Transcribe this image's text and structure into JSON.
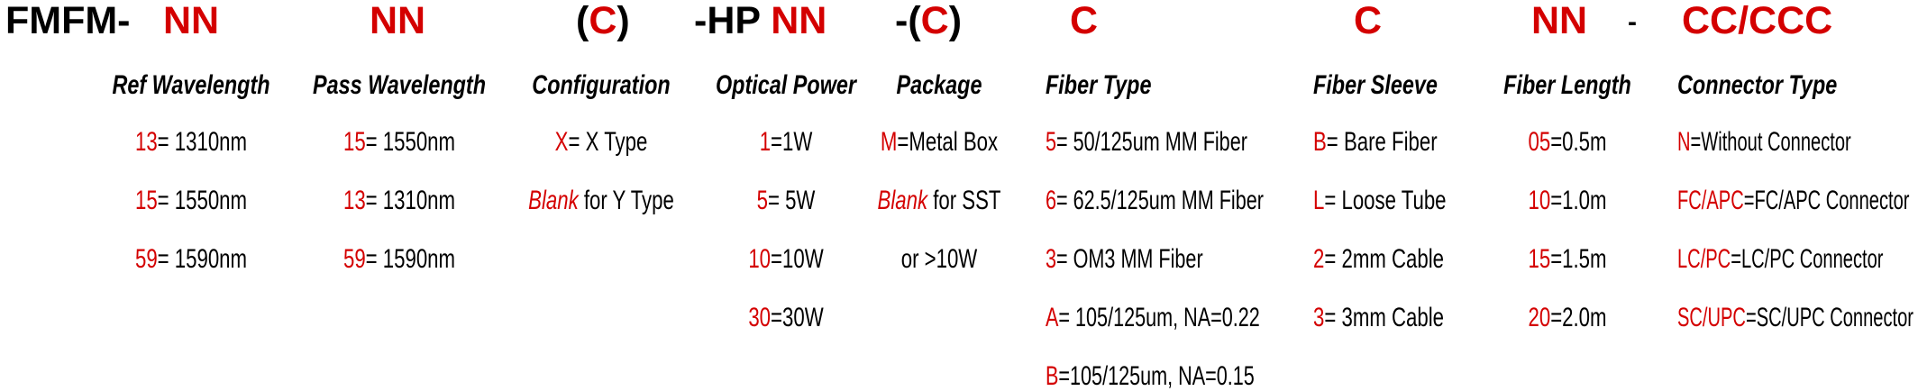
{
  "colors": {
    "accent": "#d40000",
    "text": "#000000"
  },
  "code_line": [
    {
      "text": "FMFM-",
      "red": false
    },
    {
      "text": "NN",
      "red": true
    },
    {
      "text": "NN",
      "red": true
    },
    {
      "text": "(",
      "red": false
    },
    {
      "text": "C",
      "red": true
    },
    {
      "text": ")",
      "red": false
    },
    {
      "text": "-HP ",
      "red": false
    },
    {
      "text": "NN",
      "red": true
    },
    {
      "text": "-(",
      "red": false
    },
    {
      "text": "C",
      "red": true
    },
    {
      "text": ")",
      "red": false
    },
    {
      "text": "C",
      "red": true
    },
    {
      "text": "C",
      "red": true
    },
    {
      "text": "NN",
      "red": true
    },
    {
      "text": "-",
      "red": false
    },
    {
      "text": "CC/CCC",
      "red": true
    }
  ],
  "columns": [
    {
      "header": "Ref Wavelength",
      "items": [
        {
          "code": "13",
          "text": "= 1310nm"
        },
        {
          "code": "15",
          "text": "= 1550nm"
        },
        {
          "code": "59",
          "text": "= 1590nm"
        }
      ]
    },
    {
      "header": "Pass Wavelength",
      "items": [
        {
          "code": "15",
          "text": "= 1550nm"
        },
        {
          "code": "13",
          "text": "= 1310nm"
        },
        {
          "code": "59",
          "text": "= 1590nm"
        }
      ]
    },
    {
      "header": "Configuration",
      "items": [
        {
          "code": "X",
          "text": "= X Type"
        },
        {
          "code": "Blank",
          "code_italic": true,
          "text": " for Y Type"
        }
      ]
    },
    {
      "header": "Optical Power",
      "items": [
        {
          "code": "1",
          "text": "=1W"
        },
        {
          "code": "5",
          "text": "= 5W"
        },
        {
          "code": "10",
          "text": "=10W"
        },
        {
          "code": "30",
          "text": "=30W"
        }
      ]
    },
    {
      "header": "Package",
      "items": [
        {
          "code": "M",
          "text": "=Metal Box"
        },
        {
          "code": "Blank",
          "code_italic": true,
          "text": " for SST"
        },
        {
          "code": "",
          "text": "or >10W"
        }
      ]
    },
    {
      "header": "Fiber Type",
      "items": [
        {
          "code": "5",
          "text": "= 50/125um MM Fiber"
        },
        {
          "code": "6",
          "text": "= 62.5/125um MM Fiber"
        },
        {
          "code": "3",
          "text": "= OM3 MM Fiber"
        },
        {
          "code": "A",
          "text": "= 105/125um, NA=0.22"
        },
        {
          "code": "B",
          "text": "=105/125um, NA=0.15"
        }
      ]
    },
    {
      "header": "Fiber Sleeve",
      "items": [
        {
          "code": "B",
          "text": "= Bare Fiber"
        },
        {
          "code": "L",
          "text": "= Loose Tube"
        },
        {
          "code": "2",
          "text": "= 2mm Cable"
        },
        {
          "code": "3",
          "text": "= 3mm Cable"
        }
      ]
    },
    {
      "header": "Fiber Length",
      "items": [
        {
          "code": "05",
          "text": "=0.5m"
        },
        {
          "code": "10",
          "text": "=1.0m"
        },
        {
          "code": "15",
          "text": "=1.5m"
        },
        {
          "code": "20",
          "text": "=2.0m"
        }
      ]
    },
    {
      "header": "Connector Type",
      "items": [
        {
          "code": "N",
          "text": "=Without Connector"
        },
        {
          "code": "FC/APC",
          "text": "=FC/APC Connector"
        },
        {
          "code": "LC/PC",
          "text": "=LC/PC Connector"
        },
        {
          "code": "SC/UPC",
          "text": "=SC/UPC Connector"
        }
      ]
    }
  ]
}
